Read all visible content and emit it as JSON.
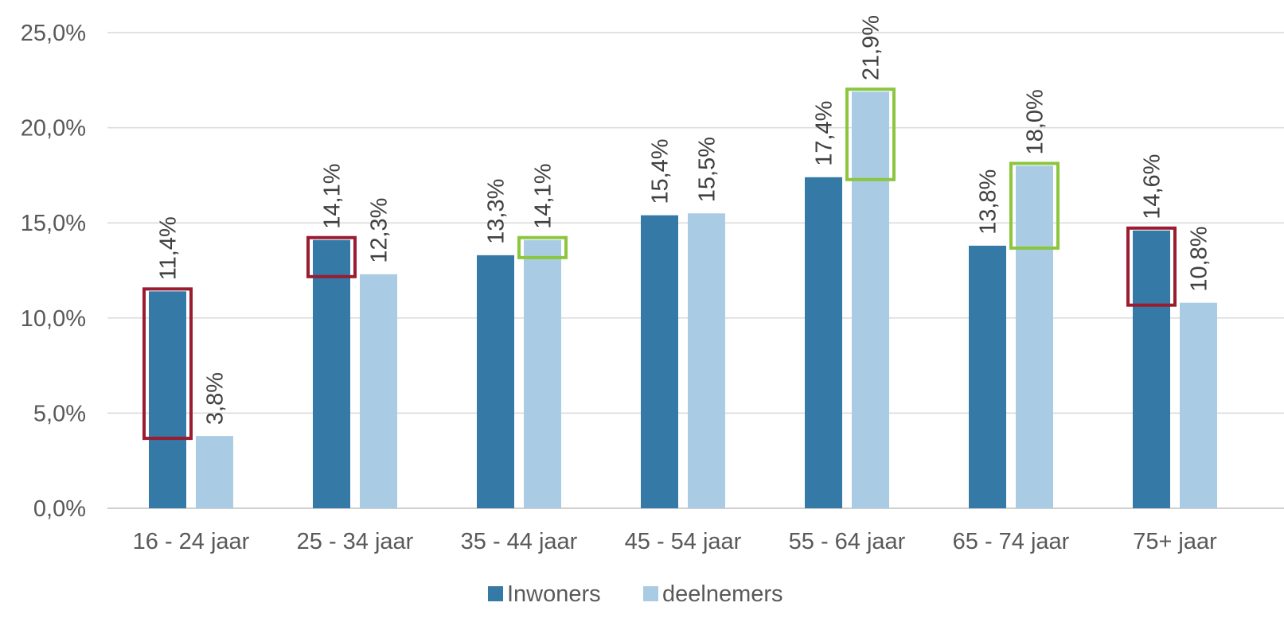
{
  "chart_data": {
    "type": "bar",
    "title": "",
    "xlabel": "",
    "ylabel": "",
    "categories": [
      "16 - 24 jaar",
      "25 - 34 jaar",
      "35 - 44 jaar",
      "45 - 54 jaar",
      "55 - 64 jaar",
      "65 - 74 jaar",
      "75+ jaar"
    ],
    "series": [
      {
        "name": "Inwoners",
        "color": "#3579a6",
        "values": [
          11.4,
          14.1,
          13.3,
          15.4,
          17.4,
          13.8,
          14.6
        ],
        "labels": [
          "11,4%",
          "14,1%",
          "13,3%",
          "15,4%",
          "17,4%",
          "13,8%",
          "14,6%"
        ]
      },
      {
        "name": "deelnemers",
        "color": "#a9cce4",
        "values": [
          3.8,
          12.3,
          14.1,
          15.5,
          21.9,
          18.0,
          10.8
        ],
        "labels": [
          "3,8%",
          "12,3%",
          "14,1%",
          "15,5%",
          "21,9%",
          "18,0%",
          "10,8%"
        ]
      }
    ],
    "ylim": [
      0,
      25
    ],
    "yticks": [
      0,
      5,
      10,
      15,
      20,
      25
    ],
    "ytick_labels": [
      "0,0%",
      "5,0%",
      "10,0%",
      "15,0%",
      "20,0%",
      "25,0%"
    ],
    "grid": true,
    "legend_position": "bottom",
    "highlights": [
      {
        "category_index": 0,
        "series_index": 0,
        "from": 3.8,
        "to": 11.4,
        "color": "#9b1b30"
      },
      {
        "category_index": 1,
        "series_index": 0,
        "from": 12.3,
        "to": 14.1,
        "color": "#9b1b30"
      },
      {
        "category_index": 2,
        "series_index": 1,
        "from": 13.3,
        "to": 14.1,
        "color": "#8cc63f"
      },
      {
        "category_index": 4,
        "series_index": 1,
        "from": 17.4,
        "to": 21.9,
        "color": "#8cc63f"
      },
      {
        "category_index": 5,
        "series_index": 1,
        "from": 13.8,
        "to": 18.0,
        "color": "#8cc63f"
      },
      {
        "category_index": 6,
        "series_index": 0,
        "from": 10.8,
        "to": 14.6,
        "color": "#9b1b30"
      }
    ]
  }
}
